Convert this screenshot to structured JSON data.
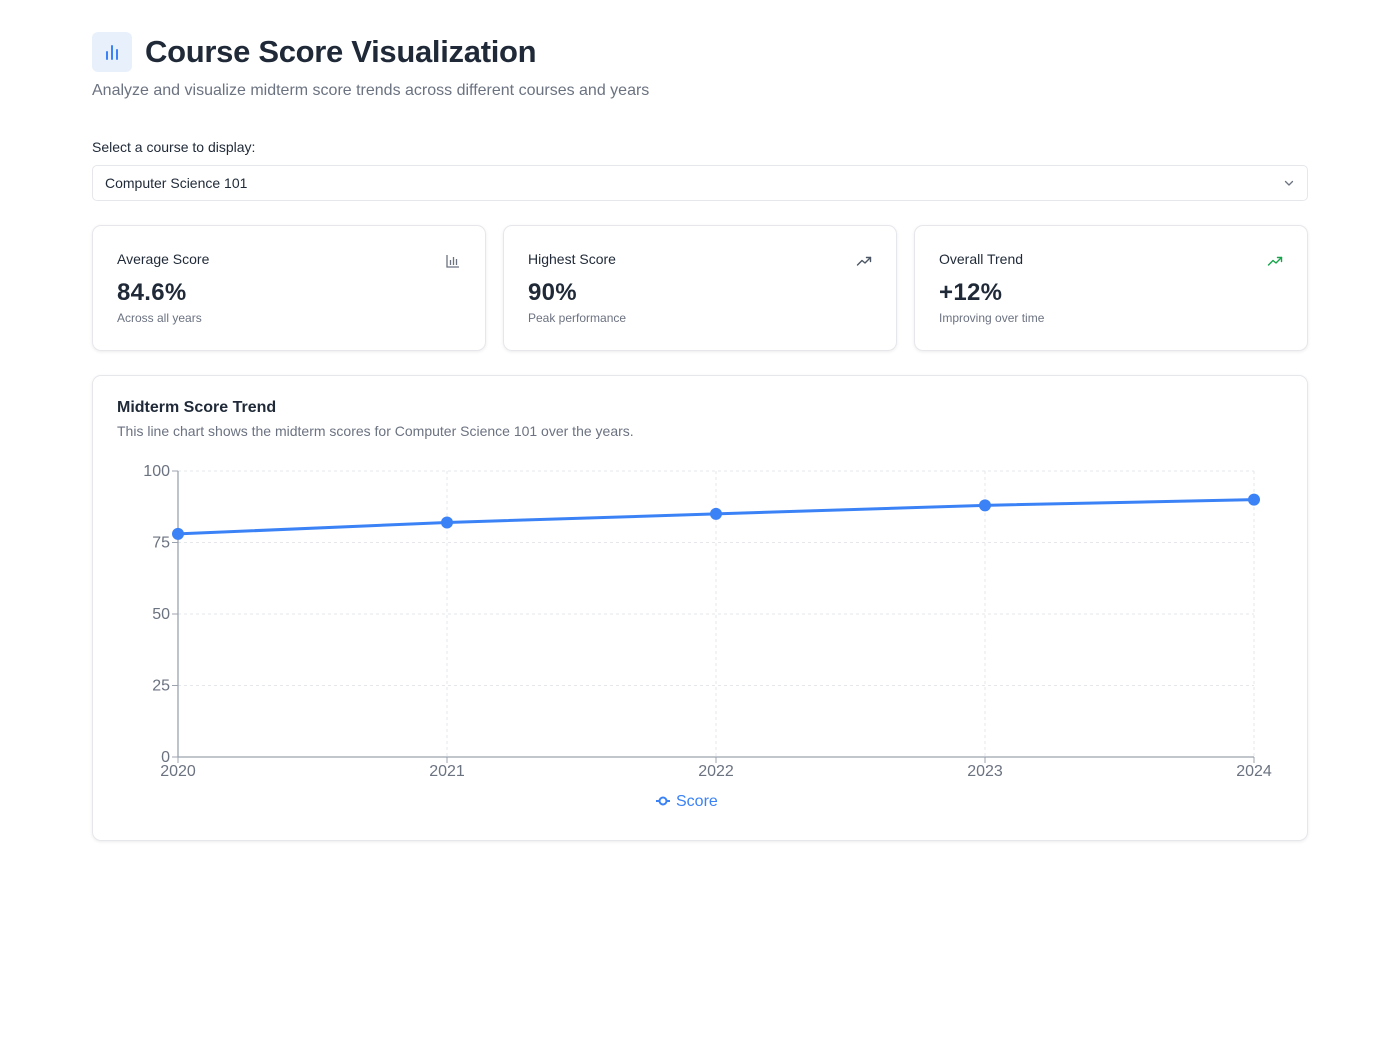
{
  "header": {
    "icon": "bar-chart-icon",
    "title": "Course Score Visualization",
    "subtitle": "Analyze and visualize midterm score trends across different courses and years"
  },
  "course_select": {
    "label": "Select a course to display:",
    "value": "Computer Science 101",
    "icon": "chevron-down-icon"
  },
  "stats": [
    {
      "title": "Average Score",
      "value": "84.6%",
      "note": "Across all years",
      "icon": "bar-chart-icon",
      "icon_color": "#6b7280"
    },
    {
      "title": "Highest Score",
      "value": "90%",
      "note": "Peak performance",
      "icon": "trending-up-icon",
      "icon_color": "#4b5563"
    },
    {
      "title": "Overall Trend",
      "value": "+12%",
      "note": "Improving over time",
      "icon": "trending-up-icon",
      "icon_color": "#16a34a"
    }
  ],
  "chart_card": {
    "title": "Midterm Score Trend",
    "description": "This line chart shows the midterm scores for Computer Science 101 over the years."
  },
  "colors": {
    "accent": "#3b82f6",
    "legend_text": "#3b82f6",
    "grid": "#e5e7eb",
    "axis": "#9ca3af"
  },
  "chart_data": {
    "type": "line",
    "x": [
      "2020",
      "2021",
      "2022",
      "2023",
      "2024"
    ],
    "series": [
      {
        "name": "Score",
        "values": [
          78,
          82,
          85,
          88,
          90
        ]
      }
    ],
    "yticks": [
      0,
      25,
      50,
      75,
      100
    ],
    "ylim": [
      0,
      100
    ],
    "grid": true,
    "legend": "bottom-center"
  }
}
